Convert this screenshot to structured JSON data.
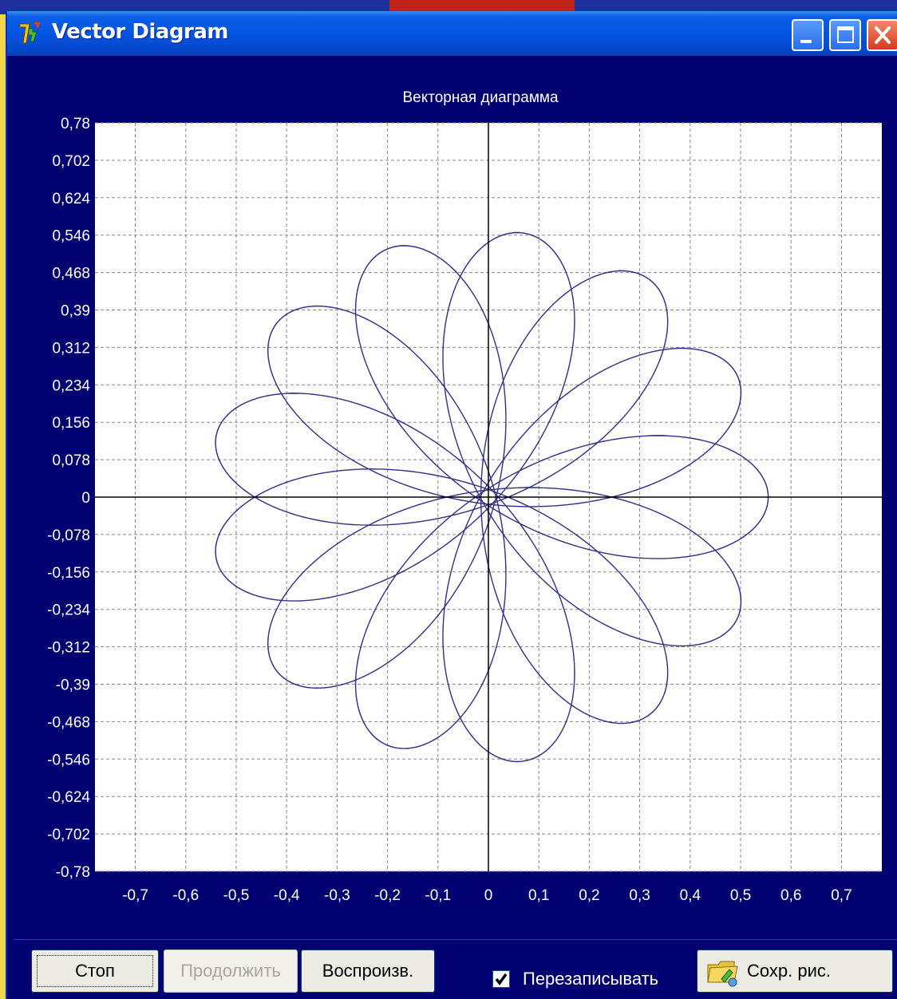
{
  "window": {
    "title": "Vector Diagram",
    "controls": [
      "minimize",
      "maximize",
      "close"
    ]
  },
  "chart_data": {
    "type": "line",
    "title": "Векторная диаграмма",
    "xlabel": "",
    "ylabel": "",
    "xlim": [
      -0.78,
      0.78
    ],
    "ylim": [
      -0.78,
      0.78
    ],
    "x_ticks": [
      "-0,7",
      "-0,6",
      "-0,5",
      "-0,4",
      "-0,3",
      "-0,2",
      "-0,1",
      "0",
      "0,1",
      "0,2",
      "0,3",
      "0,4",
      "0,5",
      "0,6",
      "0,7"
    ],
    "y_ticks": [
      "0,78",
      "0,702",
      "0,624",
      "0,546",
      "0,468",
      "0,39",
      "0,312",
      "0,234",
      "0,156",
      "0,078",
      "0",
      "-0,078",
      "-0,156",
      "-0,234",
      "-0,312",
      "-0,39",
      "-0,468",
      "-0,546",
      "-0,624",
      "-0,702",
      "-0,78"
    ],
    "grid": true,
    "series": [
      {
        "curve": "hypotrochoid",
        "R": 0.39,
        "r": 0.12,
        "d": 0.285,
        "turns": 47,
        "samples": 6000
      }
    ],
    "colors": {
      "plot_bg": "#ffffff",
      "trace": "#101072",
      "frame_bg": "#000070",
      "text": "#ffffff",
      "grid": "#888888"
    }
  },
  "buttons": {
    "stop": "Стоп",
    "continue": "Продолжить",
    "play": "Воспроизв.",
    "save": "Сохр. рис."
  },
  "overwrite": {
    "label": "Перезаписывать",
    "checked": true
  }
}
